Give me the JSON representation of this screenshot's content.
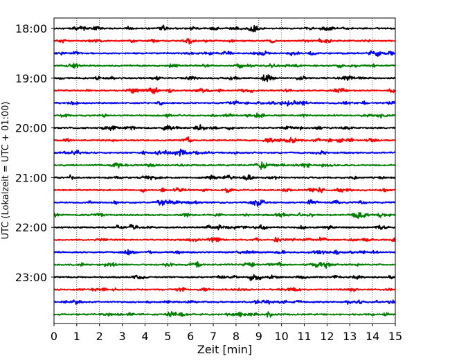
{
  "chart_data": {
    "type": "line",
    "title": "",
    "xlabel": "Zeit  [min]",
    "ylabel": "UTC (Lokalzeit = UTC + 01:00)",
    "xlim": [
      0,
      15
    ],
    "x_ticks": [
      0,
      1,
      2,
      3,
      4,
      5,
      6,
      7,
      8,
      9,
      10,
      11,
      12,
      13,
      14,
      15
    ],
    "x_tick_labels": [
      "0",
      "1",
      "2",
      "3",
      "4",
      "5",
      "6",
      "7",
      "8",
      "9",
      "10",
      "11",
      "12",
      "13",
      "14",
      "15"
    ],
    "hour_labels": [
      "18:00",
      "19:00",
      "20:00",
      "21:00",
      "22:00",
      "23:00"
    ],
    "lines_per_hour": 4,
    "line_minutes": 15,
    "grid": "vertical dotted at each minute",
    "trace_colors": [
      "#000000",
      "#ff0000",
      "#0000ff",
      "#008000"
    ],
    "series": [
      {
        "start": "18:00",
        "color": "#000000"
      },
      {
        "start": "18:15",
        "color": "#ff0000"
      },
      {
        "start": "18:30",
        "color": "#0000ff"
      },
      {
        "start": "18:45",
        "color": "#008000"
      },
      {
        "start": "19:00",
        "color": "#000000"
      },
      {
        "start": "19:15",
        "color": "#ff0000"
      },
      {
        "start": "19:30",
        "color": "#0000ff"
      },
      {
        "start": "19:45",
        "color": "#008000"
      },
      {
        "start": "20:00",
        "color": "#000000"
      },
      {
        "start": "20:15",
        "color": "#ff0000"
      },
      {
        "start": "20:30",
        "color": "#0000ff"
      },
      {
        "start": "20:45",
        "color": "#008000"
      },
      {
        "start": "21:00",
        "color": "#000000"
      },
      {
        "start": "21:15",
        "color": "#ff0000"
      },
      {
        "start": "21:30",
        "color": "#0000ff"
      },
      {
        "start": "21:45",
        "color": "#008000"
      },
      {
        "start": "22:00",
        "color": "#000000"
      },
      {
        "start": "22:15",
        "color": "#ff0000"
      },
      {
        "start": "22:30",
        "color": "#0000ff"
      },
      {
        "start": "22:45",
        "color": "#008000"
      },
      {
        "start": "23:00",
        "color": "#000000"
      },
      {
        "start": "23:15",
        "color": "#ff0000"
      },
      {
        "start": "23:30",
        "color": "#0000ff"
      },
      {
        "start": "23:45",
        "color": "#008000"
      }
    ]
  }
}
